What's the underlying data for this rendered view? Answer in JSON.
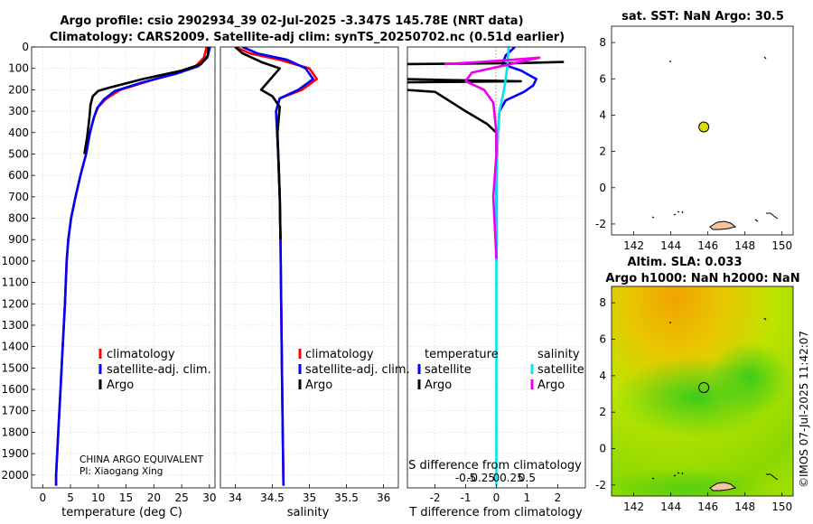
{
  "figure": {
    "title_line1": "Argo profile: csio 2902934_39 02-Jul-2025 -3.347S 145.78E (NRT data)",
    "title_line2": "Climatology: CARS2009. Satellite-adj clim: synTS_20250702.nc (0.51d earlier)",
    "credit": "©IMOS 07-Jul-2025 11:42:07",
    "data_note_line1": "CHINA ARGO EQUIVALENT",
    "data_note_line2": "PI: Xiaogang Xing"
  },
  "colors": {
    "climatology": "#ff0000",
    "satellite_adj": "#0000ff",
    "argo": "#000000",
    "sat_salinity": "#00e5ee",
    "argo_salinity": "#ee00ee",
    "marker": "#dcdc00"
  },
  "chart_data": [
    {
      "type": "line",
      "id": "temperature",
      "xlabel": "temperature (deg C)",
      "ylabel": "",
      "xlim": [
        -2,
        31
      ],
      "ylim": [
        2060,
        0
      ],
      "xticks": [
        0,
        5,
        10,
        15,
        20,
        25,
        30
      ],
      "xtick_labels": [
        "0",
        "5",
        "10",
        "15",
        "20",
        "25",
        "30"
      ],
      "yticks": [
        0,
        100,
        200,
        300,
        400,
        500,
        600,
        700,
        800,
        900,
        1000,
        1100,
        1200,
        1300,
        1400,
        1500,
        1600,
        1700,
        1800,
        1900,
        2000
      ],
      "grid": true,
      "legend": [
        "climatology",
        "satellite-adj. clim.",
        "Argo"
      ],
      "legend_location": "lower-right",
      "series": [
        {
          "name": "climatology",
          "color_key": "climatology",
          "points": [
            [
              29.5,
              0
            ],
            [
              29,
              50
            ],
            [
              27.5,
              90
            ],
            [
              24,
              120
            ],
            [
              19,
              160
            ],
            [
              14,
              200
            ],
            [
              11.5,
              240
            ],
            [
              10,
              280
            ],
            [
              9.2,
              330
            ],
            [
              8.5,
              400
            ],
            [
              7.8,
              500
            ],
            [
              6.8,
              600
            ],
            [
              5.9,
              700
            ],
            [
              5.1,
              800
            ],
            [
              4.6,
              900
            ],
            [
              4.3,
              1000
            ],
            [
              4.0,
              1200
            ],
            [
              3.6,
              1400
            ],
            [
              3.2,
              1600
            ],
            [
              2.8,
              1800
            ],
            [
              2.4,
              2000
            ],
            [
              2.4,
              2050
            ]
          ]
        },
        {
          "name": "satellite-adj. clim.",
          "color_key": "satellite_adj",
          "points": [
            [
              30.1,
              0
            ],
            [
              29.6,
              50
            ],
            [
              28,
              90
            ],
            [
              24,
              125
            ],
            [
              18,
              165
            ],
            [
              13,
              205
            ],
            [
              11,
              245
            ],
            [
              9.8,
              285
            ],
            [
              9.2,
              330
            ],
            [
              8.5,
              400
            ],
            [
              7.8,
              500
            ],
            [
              6.8,
              600
            ],
            [
              5.9,
              700
            ],
            [
              5.1,
              800
            ],
            [
              4.6,
              900
            ],
            [
              4.3,
              1000
            ],
            [
              4.0,
              1200
            ],
            [
              3.6,
              1400
            ],
            [
              3.2,
              1600
            ],
            [
              2.8,
              1800
            ],
            [
              2.4,
              2000
            ],
            [
              2.4,
              2050
            ]
          ]
        },
        {
          "name": "Argo",
          "color_key": "argo",
          "points": [
            [
              29.8,
              0
            ],
            [
              29.7,
              40
            ],
            [
              28.5,
              80
            ],
            [
              25,
              110
            ],
            [
              18,
              150
            ],
            [
              12,
              190
            ],
            [
              10,
              205
            ],
            [
              9,
              230
            ],
            [
              8.6,
              270
            ],
            [
              8.4,
              330
            ],
            [
              8.0,
              420
            ],
            [
              7.5,
              500
            ]
          ]
        }
      ]
    },
    {
      "type": "line",
      "id": "salinity",
      "xlabel": "salinity",
      "xlim": [
        33.8,
        36.2
      ],
      "ylim": [
        2060,
        0
      ],
      "xticks": [
        34,
        34.5,
        35,
        35.5,
        36
      ],
      "xtick_labels": [
        "34",
        "34.5",
        "35",
        "35.5",
        "36"
      ],
      "grid": true,
      "legend": [
        "climatology",
        "satellite-adj. clim.",
        "Argo"
      ],
      "legend_location": "lower-right",
      "series": [
        {
          "name": "climatology",
          "color_key": "climatology",
          "points": [
            [
              34.0,
              0
            ],
            [
              34.2,
              30
            ],
            [
              34.6,
              60
            ],
            [
              35.0,
              100
            ],
            [
              35.1,
              150
            ],
            [
              34.9,
              200
            ],
            [
              34.6,
              240
            ],
            [
              34.55,
              300
            ],
            [
              34.58,
              500
            ],
            [
              34.6,
              700
            ],
            [
              34.61,
              900
            ],
            [
              34.62,
              1200
            ],
            [
              34.63,
              1500
            ],
            [
              34.64,
              1800
            ],
            [
              34.65,
              2050
            ]
          ]
        },
        {
          "name": "satellite-adj. clim.",
          "color_key": "satellite_adj",
          "points": [
            [
              34.1,
              0
            ],
            [
              34.3,
              30
            ],
            [
              34.7,
              60
            ],
            [
              34.95,
              100
            ],
            [
              35.05,
              150
            ],
            [
              34.85,
              200
            ],
            [
              34.6,
              240
            ],
            [
              34.55,
              300
            ],
            [
              34.58,
              500
            ],
            [
              34.6,
              700
            ],
            [
              34.61,
              900
            ],
            [
              34.62,
              1200
            ],
            [
              34.63,
              1500
            ],
            [
              34.64,
              1800
            ],
            [
              34.65,
              2050
            ]
          ]
        },
        {
          "name": "Argo",
          "color_key": "argo",
          "points": [
            [
              34.0,
              0
            ],
            [
              34.1,
              30
            ],
            [
              34.35,
              70
            ],
            [
              34.6,
              100
            ],
            [
              34.35,
              200
            ],
            [
              34.5,
              230
            ],
            [
              34.6,
              280
            ],
            [
              34.57,
              400
            ],
            [
              34.58,
              500
            ],
            [
              34.6,
              700
            ],
            [
              34.61,
              900
            ]
          ]
        }
      ]
    },
    {
      "type": "line",
      "id": "difference",
      "xlabel": "T difference from climatology",
      "top_label": "S difference from climatology",
      "xlim": [
        -2.9,
        2.9
      ],
      "ylim": [
        2060,
        0
      ],
      "xticks": [
        -2,
        -1,
        0,
        1,
        2
      ],
      "xtick_labels": [
        "-2",
        "-1",
        "0",
        "1",
        "2"
      ],
      "top_ticks": [
        -1,
        -0.5,
        0,
        0.5,
        1
      ],
      "top_tick_labels": [
        "-0.5",
        "-0.25",
        "0",
        "0.25",
        "0.5"
      ],
      "grid": true,
      "legend_temperature_title": "temperature",
      "legend_salinity_title": "salinity",
      "legend_temperature": [
        "satellite",
        "Argo"
      ],
      "legend_salinity": [
        "satellite",
        "Argo"
      ],
      "series": [
        {
          "name": "temperature satellite",
          "color_key": "satellite_adj",
          "points": [
            [
              0.6,
              0
            ],
            [
              0.3,
              40
            ],
            [
              0.2,
              80
            ],
            [
              0.8,
              110
            ],
            [
              1.3,
              150
            ],
            [
              1.2,
              180
            ],
            [
              0.9,
              210
            ],
            [
              0.3,
              250
            ],
            [
              0.1,
              300
            ],
            [
              0.05,
              400
            ],
            [
              0,
              600
            ],
            [
              0,
              1000
            ]
          ]
        },
        {
          "name": "temperature Argo",
          "color_key": "argo",
          "points": [
            [
              2.2,
              70
            ],
            [
              0.8,
              75
            ],
            [
              -3,
              80
            ],
            [
              -3,
              150
            ],
            [
              -1.5,
              155
            ],
            [
              0.8,
              160
            ],
            [
              -3,
              165
            ],
            [
              -3,
              200
            ],
            [
              -2,
              210
            ],
            [
              -1,
              300
            ],
            [
              -0.3,
              360
            ],
            [
              0,
              400
            ],
            [
              0,
              500
            ]
          ]
        },
        {
          "name": "salinity satellite",
          "color_key": "sat_salinity",
          "points": [
            [
              0.4,
              0
            ],
            [
              0.35,
              100
            ],
            [
              0.25,
              200
            ],
            [
              0.1,
              300
            ],
            [
              0.05,
              400
            ],
            [
              0,
              600
            ],
            [
              0,
              2050
            ]
          ]
        },
        {
          "name": "salinity Argo",
          "color_key": "argo_salinity",
          "points": [
            [
              -1.7,
              80
            ],
            [
              -0.5,
              70
            ],
            [
              0.5,
              60
            ],
            [
              1.4,
              50
            ],
            [
              -0.8,
              120
            ],
            [
              -1.0,
              160
            ],
            [
              -0.4,
              200
            ],
            [
              -0.1,
              260
            ],
            [
              0,
              400
            ],
            [
              0,
              500
            ],
            [
              -0.1,
              700
            ],
            [
              0,
              990
            ]
          ]
        }
      ]
    },
    {
      "type": "scatter",
      "id": "sst_map",
      "title": "sat. SST: NaN Argo: 30.5",
      "xlim": [
        140.8,
        150.6
      ],
      "ylim": [
        -2.6,
        8.9
      ],
      "xticks": [
        142,
        144,
        146,
        148,
        150
      ],
      "xtick_labels": [
        "142",
        "144",
        "146",
        "148",
        "150"
      ],
      "yticks": [
        -2,
        0,
        2,
        4,
        6,
        8
      ],
      "ytick_labels": [
        "-2",
        "0",
        "2",
        "4",
        "6",
        "8"
      ],
      "marker": {
        "lon": 145.78,
        "lat": 3.35
      }
    },
    {
      "type": "heatmap",
      "id": "sla_map",
      "title_line1": "Altim. SLA: 0.033",
      "title_line2": "Argo h1000: NaN h2000: NaN",
      "xlim": [
        140.8,
        150.6
      ],
      "ylim": [
        -2.6,
        8.9
      ],
      "xticks": [
        142,
        144,
        146,
        148,
        150
      ],
      "xtick_labels": [
        "142",
        "144",
        "146",
        "148",
        "150"
      ],
      "yticks": [
        -2,
        0,
        2,
        4,
        6,
        8
      ],
      "ytick_labels": [
        "-2",
        "0",
        "2",
        "4",
        "6",
        "8"
      ],
      "marker": {
        "lon": 145.78,
        "lat": 3.35
      }
    }
  ]
}
